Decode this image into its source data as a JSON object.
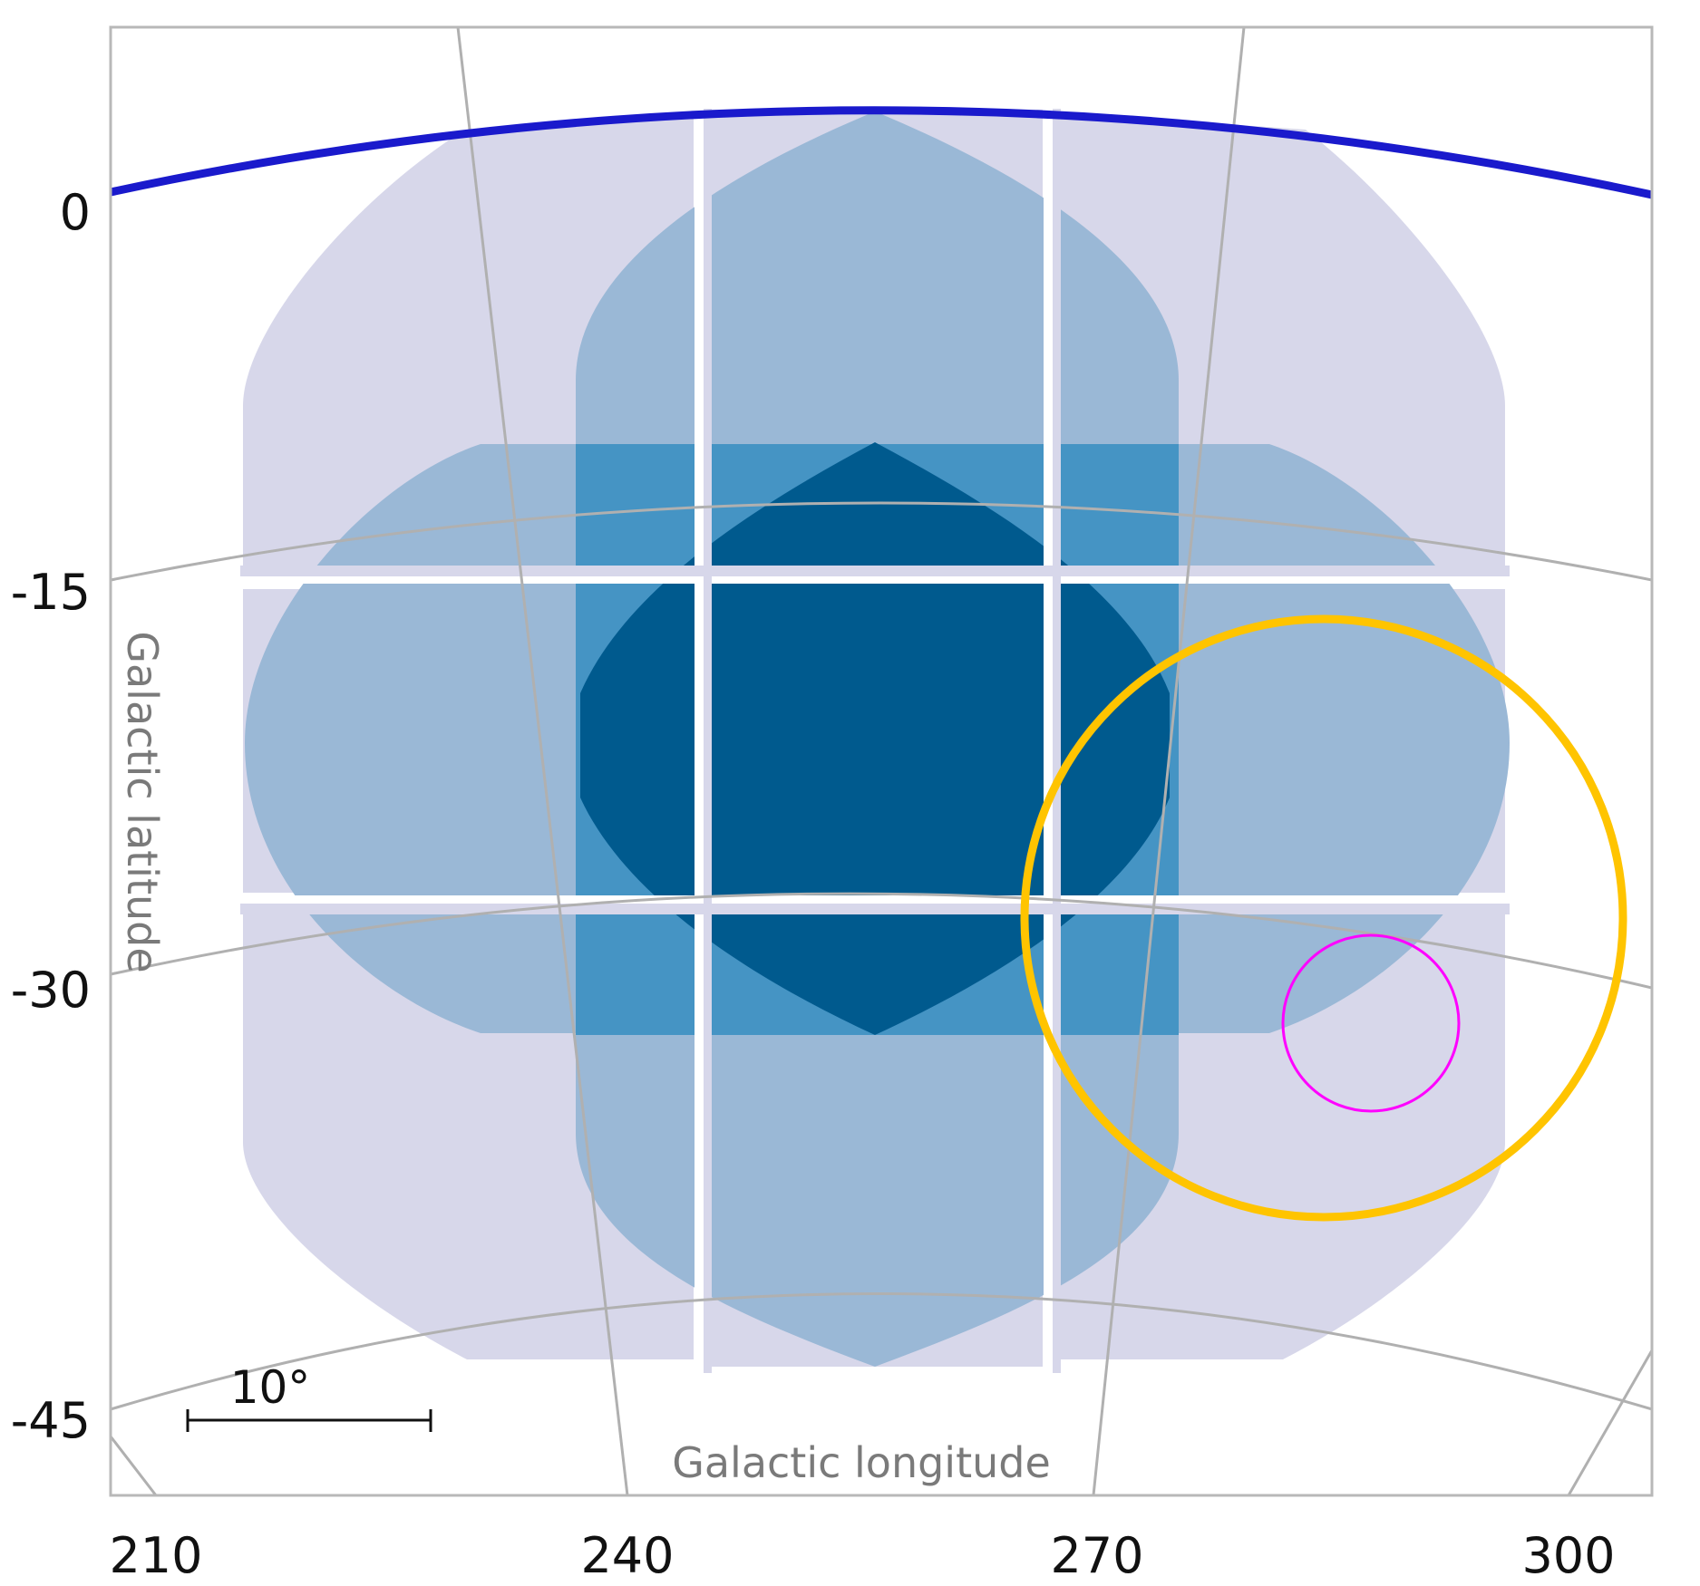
{
  "chart_data": {
    "type": "coverage-map",
    "xlabel": "Galactic longitude",
    "ylabel": "Galactic latitude",
    "x_ticks": [
      "210",
      "240",
      "270",
      "300"
    ],
    "y_ticks": [
      "0",
      "-15",
      "-30",
      "-45"
    ],
    "scale_bar_label": "10°",
    "colors": {
      "coverage_1": "#d7d7ea",
      "coverage_2": "#9ab8d6",
      "coverage_3": "#4594c4",
      "coverage_4": "#005a8e",
      "galactic_plane": "#1a1acc",
      "large_circle": "#ffc400",
      "small_circle": "#ff00ff",
      "grid": "#b0b0b0",
      "frame": "#b8b8b8"
    }
  }
}
